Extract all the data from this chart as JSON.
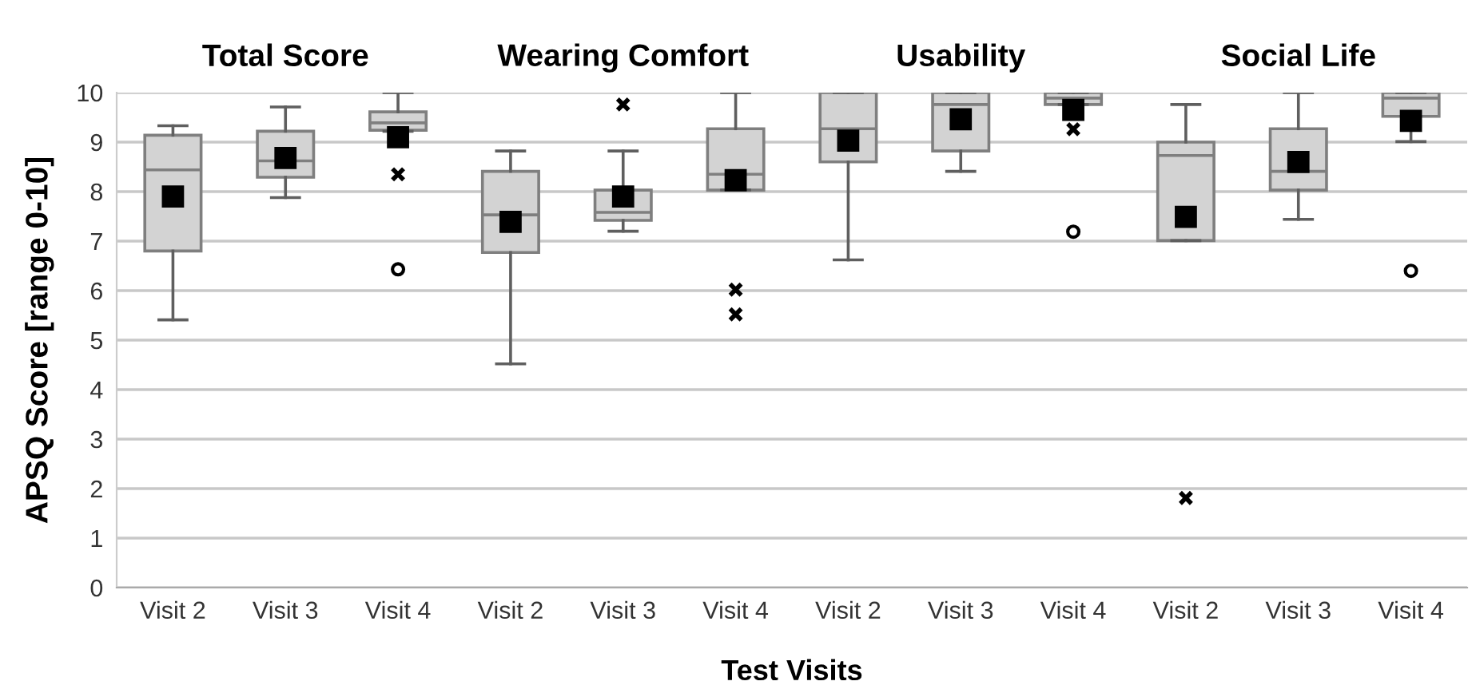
{
  "chart_data": {
    "type": "box",
    "ylabel": "APSQ Score [range 0-10]",
    "xlabel": "Test Visits",
    "annotations": [
      "Total Score",
      "Wearing Comfort",
      "Usability",
      "Social Life"
    ],
    "categories": [
      "Visit 2",
      "Visit 3",
      "Visit 4",
      "Visit 2",
      "Visit 3",
      "Visit 4",
      "Visit 2",
      "Visit 3",
      "Visit 4",
      "Visit 2",
      "Visit 3",
      "Visit 4"
    ],
    "ylim": [
      0,
      10
    ],
    "yticks": [
      0,
      1,
      2,
      3,
      4,
      5,
      6,
      7,
      8,
      9,
      10
    ],
    "grid": "y",
    "series": [
      {
        "color": "#d3d3d3",
        "boxes": [
          {
            "low": 5.41,
            "q1": 6.8,
            "median": 8.44,
            "q3": 9.14,
            "high": 9.33,
            "mean": 7.9
          },
          {
            "low": 7.88,
            "q1": 8.29,
            "median": 8.62,
            "q3": 9.22,
            "high": 9.71,
            "mean": 8.68
          },
          {
            "low": 9.22,
            "q1": 9.24,
            "median": 9.39,
            "q3": 9.61,
            "high": 10,
            "mean": 9.1,
            "outliers": [
              8.35
            ]
          },
          {
            "low": 4.52,
            "q1": 6.77,
            "median": 7.53,
            "q3": 8.41,
            "high": 8.82,
            "mean": 7.39
          },
          {
            "low": 7.2,
            "q1": 7.42,
            "median": 7.58,
            "q3": 8.03,
            "high": 8.82,
            "mean": 7.9,
            "outliers": [
              9.76
            ]
          },
          {
            "low": 8.03,
            "q1": 8.03,
            "median": 8.35,
            "q3": 9.27,
            "high": 10,
            "mean": 8.23,
            "outliers": [
              6.02,
              5.52
            ]
          },
          {
            "low": 6.62,
            "q1": 8.6,
            "median": 9.27,
            "q3": 10,
            "high": 10,
            "mean": 9.03
          },
          {
            "low": 8.41,
            "q1": 8.82,
            "median": 9.76,
            "q3": 10,
            "high": 10,
            "mean": 9.46
          },
          {
            "low": 9.76,
            "q1": 9.76,
            "median": 9.89,
            "q3": 10,
            "high": 10,
            "mean": 9.65,
            "outliers": [
              9.26
            ]
          },
          {
            "low": 7.01,
            "q1": 7.01,
            "median": 8.73,
            "q3": 9.0,
            "high": 9.76,
            "mean": 7.49,
            "outliers": [
              1.81
            ]
          },
          {
            "low": 7.44,
            "q1": 8.03,
            "median": 8.41,
            "q3": 9.27,
            "high": 10,
            "mean": 8.6
          },
          {
            "low": 9.01,
            "q1": 9.52,
            "median": 9.89,
            "q3": 10,
            "high": 10,
            "mean": 9.43
          }
        ]
      },
      {
        "type": "scatter",
        "color": "#000000",
        "marker": "circle",
        "values": [
          null,
          null,
          6.43,
          null,
          null,
          null,
          null,
          null,
          7.19,
          null,
          null,
          6.4
        ]
      }
    ]
  }
}
